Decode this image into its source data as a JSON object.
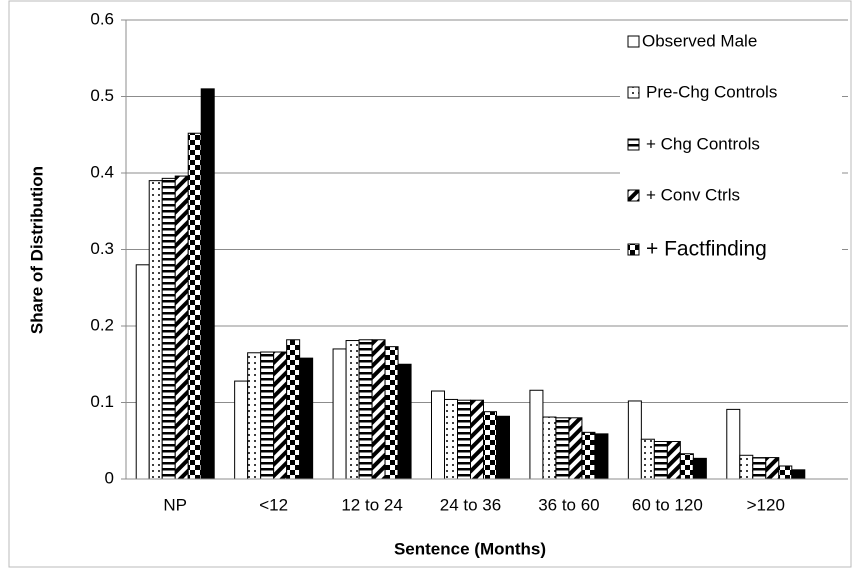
{
  "chart_data": {
    "type": "bar",
    "xlabel": "Sentence (Months)",
    "ylabel": "Share of Distribution",
    "categories": [
      "NP",
      "<12",
      "12 to 24",
      "24 to 36",
      "36 to 60",
      "60 to 120",
      ">120"
    ],
    "series": [
      {
        "name": "Observed Male",
        "color": "#ffffff",
        "values": [
          0.28,
          0.128,
          0.17,
          0.115,
          0.116,
          0.102,
          0.091
        ]
      },
      {
        "name": "Pre-Chg Controls",
        "color": "#ffffff",
        "values": [
          0.39,
          0.165,
          0.181,
          0.104,
          0.081,
          0.052,
          0.031
        ]
      },
      {
        "name": "+ Chg Controls",
        "color": "#ffffff",
        "values": [
          0.393,
          0.166,
          0.182,
          0.103,
          0.08,
          0.049,
          0.028
        ]
      },
      {
        "name": "+ Conv Ctrls",
        "color": "#000000",
        "values": [
          0.396,
          0.166,
          0.182,
          0.103,
          0.08,
          0.049,
          0.028
        ]
      },
      {
        "name": "+ Factfinding",
        "color": "#000000",
        "values": [
          0.452,
          0.182,
          0.173,
          0.088,
          0.061,
          0.033,
          0.017
        ]
      },
      {
        "name": "",
        "color": "#000000",
        "values": [
          0.51,
          0.158,
          0.15,
          0.082,
          0.059,
          0.027,
          0.012
        ]
      }
    ],
    "ylim": [
      0,
      0.6
    ],
    "yticks": [
      0,
      0.1,
      0.2,
      0.3,
      0.4,
      0.5,
      0.6
    ],
    "grid": true,
    "legend": "upper right"
  }
}
